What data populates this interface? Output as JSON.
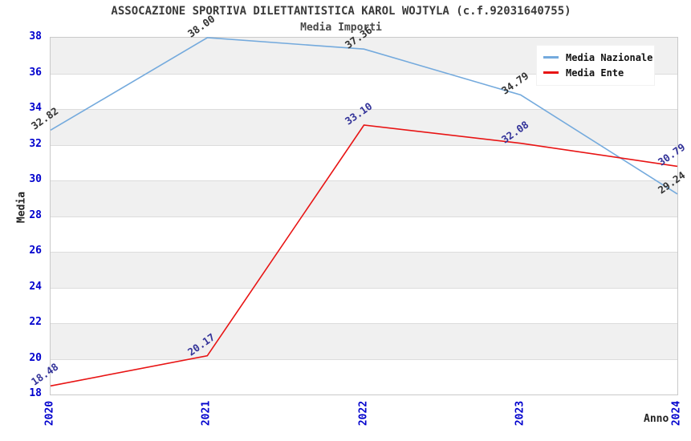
{
  "chart_data": {
    "type": "line",
    "title": "ASSOCAZIONE SPORTIVA DILETTANTISTICA KAROL WOJTYLA (c.f.92031640755)",
    "subtitle": "Media Importi",
    "xlabel": "Anno",
    "ylabel": "Media",
    "x_labels": [
      "2020",
      "2021",
      "2022",
      "2023",
      "2024"
    ],
    "ylim": [
      18,
      38
    ],
    "ytick_step": 2,
    "grid": "horizontal",
    "band_fill": "alternating",
    "legend_position": "top-right",
    "series": [
      {
        "name": "Media Nazionale",
        "color": "#74aadd",
        "label_color": "#333333",
        "values": [
          32.82,
          38.0,
          37.36,
          34.79,
          29.24
        ],
        "point_labels": [
          "32.82",
          "38.00",
          "37.36",
          "34.79",
          "29.24"
        ]
      },
      {
        "name": "Media Ente",
        "color": "#e81414",
        "label_color": "#333399",
        "values": [
          18.48,
          20.17,
          33.1,
          32.08,
          30.79
        ],
        "point_labels": [
          "18.48",
          "20.17",
          "33.10",
          "32.08",
          "30.79"
        ]
      }
    ],
    "colors": {
      "tick_label": "#0000cd",
      "band_gray": "#f0f0f0",
      "gridline": "#dcdcdc",
      "plot_border": "#c9c9c9"
    }
  }
}
